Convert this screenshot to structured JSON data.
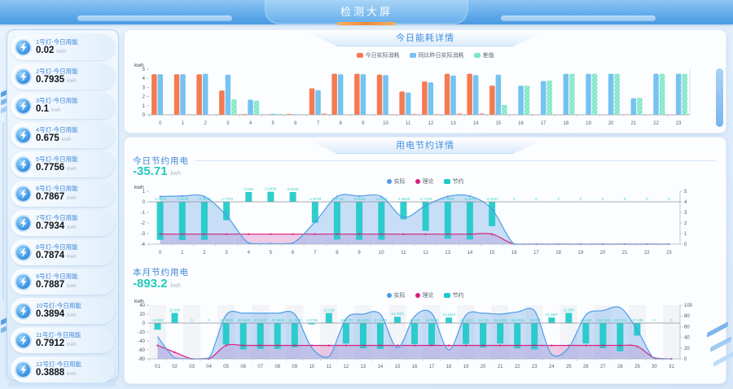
{
  "header": {
    "title": "检测大屏"
  },
  "sidebar": {
    "unit": "kwh",
    "items": [
      {
        "label": "1号灯-今日用能",
        "value": "0.02"
      },
      {
        "label": "2号灯-今日用能",
        "value": "0.7935"
      },
      {
        "label": "3号灯-今日用能",
        "value": "0.1"
      },
      {
        "label": "4号灯-今日用能",
        "value": "0.675"
      },
      {
        "label": "5号灯-今日用能",
        "value": "0.7756"
      },
      {
        "label": "6号灯-今日用能",
        "value": "0.7867"
      },
      {
        "label": "7号灯-今日用能",
        "value": "0.7934"
      },
      {
        "label": "8号灯-今日用能",
        "value": "0.7874"
      },
      {
        "label": "9号灯-今日用能",
        "value": "0.7887"
      },
      {
        "label": "10号灯-今日用能",
        "value": "0.3894"
      },
      {
        "label": "11号灯-今日用能",
        "value": "0.7912"
      },
      {
        "label": "12号灯-今日用能",
        "value": "0.3888"
      }
    ]
  },
  "panels": {
    "energy": {
      "title": "今日能耗详情"
    },
    "saving": {
      "title": "用电节约详情",
      "legend": [
        {
          "label": "实际",
          "color": "#4a9de8",
          "shape": "circle"
        },
        {
          "label": "理论",
          "color": "#d4217f",
          "shape": "circle"
        },
        {
          "label": "节约",
          "color": "#1ec9c9",
          "shape": "square"
        }
      ],
      "today": {
        "heading": "今日节约用电",
        "value": "-35.71",
        "unit": "kwh"
      },
      "month": {
        "heading": "本月节约用电",
        "value": "-893.2",
        "unit": "kwh"
      }
    }
  },
  "chart_data": [
    {
      "id": "chart1",
      "type": "bar",
      "title": "今日能耗详情",
      "ylabel": "kwh",
      "ylim": [
        0,
        5
      ],
      "yticks": [
        5,
        4,
        3,
        2,
        1,
        0
      ],
      "categories": [
        "0",
        "1",
        "2",
        "3",
        "4",
        "5",
        "6",
        "7",
        "8",
        "9",
        "10",
        "11",
        "12",
        "13",
        "14",
        "15",
        "16",
        "17",
        "18",
        "19",
        "20",
        "21",
        "22",
        "23"
      ],
      "series": [
        {
          "name": "今日实际消耗",
          "color": "#f57a52",
          "values": [
            4.45,
            4.45,
            4.45,
            2.65,
            0.06,
            0.03,
            0.08,
            2.9,
            4.5,
            4.5,
            4.4,
            2.55,
            3.65,
            4.5,
            4.5,
            3.2,
            0,
            0,
            0,
            0,
            0,
            0,
            0,
            0
          ]
        },
        {
          "name": "同比昨日实际消耗",
          "color": "#74c3f0",
          "values": [
            4.45,
            4.45,
            4.5,
            4.4,
            1.65,
            0.1,
            0.06,
            2.7,
            4.45,
            4.45,
            4.35,
            2.45,
            3.55,
            4.3,
            4.35,
            4.4,
            3.2,
            3.7,
            4.5,
            4.5,
            4.5,
            1.8,
            4.5,
            4.5
          ]
        },
        {
          "name": "差值",
          "color": "#7ee6c6",
          "hatch": true,
          "alt_color": "#f4a29b",
          "alt_hours": [
            7,
            10,
            11,
            12,
            13,
            14
          ],
          "values": [
            0.04,
            0,
            0.04,
            1.7,
            1.55,
            0.1,
            0,
            0.15,
            0,
            0,
            0.06,
            0.1,
            0.08,
            0.15,
            0.15,
            1.1,
            3.2,
            3.75,
            4.5,
            4.5,
            4.5,
            1.85,
            4.5,
            4.5
          ]
        }
      ]
    },
    {
      "id": "chart2",
      "type": "combo",
      "title": "今日节约用电",
      "ylabel": "kwh",
      "ylim_left": [
        -4,
        1
      ],
      "yticks_left": [
        1,
        0,
        -1,
        -2,
        -3,
        -4
      ],
      "ylim_right": [
        0,
        5
      ],
      "yticks_right": [
        5,
        4,
        3,
        2,
        1,
        0
      ],
      "column_bands": false,
      "categories": [
        "0",
        "1",
        "2",
        "3",
        "4",
        "5",
        "6",
        "7",
        "8",
        "9",
        "10",
        "11",
        "12",
        "13",
        "14",
        "15",
        "16",
        "17",
        "18",
        "19",
        "20",
        "21",
        "22",
        "23"
      ],
      "bars": {
        "name": "节约",
        "color": "#1ec9c9",
        "label_color": "#35d3cd",
        "values": [
          -3.5974,
          -3.6168,
          -3.5912,
          -1.7379,
          0.926,
          0.9436,
          0.9245,
          -1.9734,
          -3.5716,
          -3.5918,
          -3.5827,
          -1.6528,
          -2.7443,
          -3.4856,
          -3.5621,
          -2.3021,
          0,
          0,
          0,
          0,
          0,
          0,
          0,
          0
        ]
      },
      "lines": [
        {
          "name": "理论",
          "color": "#d4217f",
          "fill": "rgba(216,128,196,0.40)",
          "dots": true,
          "values": [
            -3.05,
            -3.05,
            -3.05,
            -3.05,
            -3.05,
            -3.05,
            -3.05,
            -3.05,
            -3.05,
            -3.05,
            -3.05,
            -3.05,
            -3.05,
            -3.05,
            -3.05,
            -3.05,
            -4,
            -4,
            -4,
            -4,
            -4,
            -4,
            -4,
            -4
          ]
        },
        {
          "name": "实际",
          "color": "#4a9de8",
          "fill": "rgba(137,185,238,0.45)",
          "dots": true,
          "values": [
            0.5,
            0.55,
            0.5,
            -1.3,
            -3.9,
            -3.95,
            -3.9,
            -1.9,
            0.5,
            0.55,
            0.5,
            -1.45,
            -0.35,
            0.5,
            0.55,
            -0.7,
            -4,
            -4,
            -4,
            -4,
            -4,
            -4,
            -4,
            -4
          ]
        }
      ]
    },
    {
      "id": "chart3",
      "type": "combo",
      "title": "本月节约用电",
      "ylabel": "kwh",
      "ylim_left": [
        -80,
        40
      ],
      "yticks_left": [
        40,
        20,
        0,
        -20,
        -40,
        -60,
        -80
      ],
      "ylim_right": [
        0,
        100
      ],
      "yticks_right": [
        100,
        80,
        60,
        40,
        20,
        0
      ],
      "column_bands": true,
      "categories": [
        "01",
        "02",
        "03",
        "04",
        "05",
        "06",
        "07",
        "08",
        "09",
        "10",
        "11",
        "12",
        "13",
        "14",
        "15",
        "16",
        "17",
        "18",
        "19",
        "20",
        "21",
        "22",
        "23",
        "24",
        "25",
        "26",
        "27",
        "28",
        "29",
        "30",
        "31"
      ],
      "bars": {
        "name": "节约",
        "color": "#1ec9c9",
        "label_color": "#35d3cd",
        "values": [
          -14.992,
          22.648,
          0,
          0,
          -47.8935,
          -58.6528,
          -57.8397,
          -57.5903,
          -54.1135,
          -2.6765,
          22.618,
          -45.8791,
          -56.5681,
          -57.5833,
          14.1002,
          -47.057,
          -48.6449,
          12.3264,
          -46.8111,
          -54.728,
          -45.8393,
          -56.6145,
          -58.857,
          12.3487,
          22.688,
          -45.634,
          -56.0345,
          -63.1004,
          -27.935,
          0,
          0
        ]
      },
      "lines": [
        {
          "name": "理论",
          "color": "#d4217f",
          "fill": "rgba(216,128,196,0.40)",
          "dots": true,
          "values": [
            -50,
            -65,
            -80,
            -80,
            -50,
            -50,
            -50,
            -50,
            -50,
            -50,
            -50,
            -50,
            -50,
            -50,
            -50,
            -50,
            -50,
            -50,
            -50,
            -50,
            -50,
            -50,
            -50,
            -50,
            -50,
            -50,
            -50,
            -50,
            -52,
            -78,
            -80
          ]
        },
        {
          "name": "实际",
          "color": "#4a9de8",
          "fill": "rgba(137,185,238,0.45)",
          "dots": false,
          "values": [
            -30,
            -78,
            -80,
            -78,
            18,
            22,
            22,
            22,
            20,
            -55,
            -75,
            10,
            20,
            20,
            -55,
            15,
            22,
            -60,
            18,
            22,
            20,
            25,
            28,
            -70,
            -55,
            18,
            28,
            35,
            -15,
            -80,
            -80
          ]
        }
      ]
    }
  ]
}
